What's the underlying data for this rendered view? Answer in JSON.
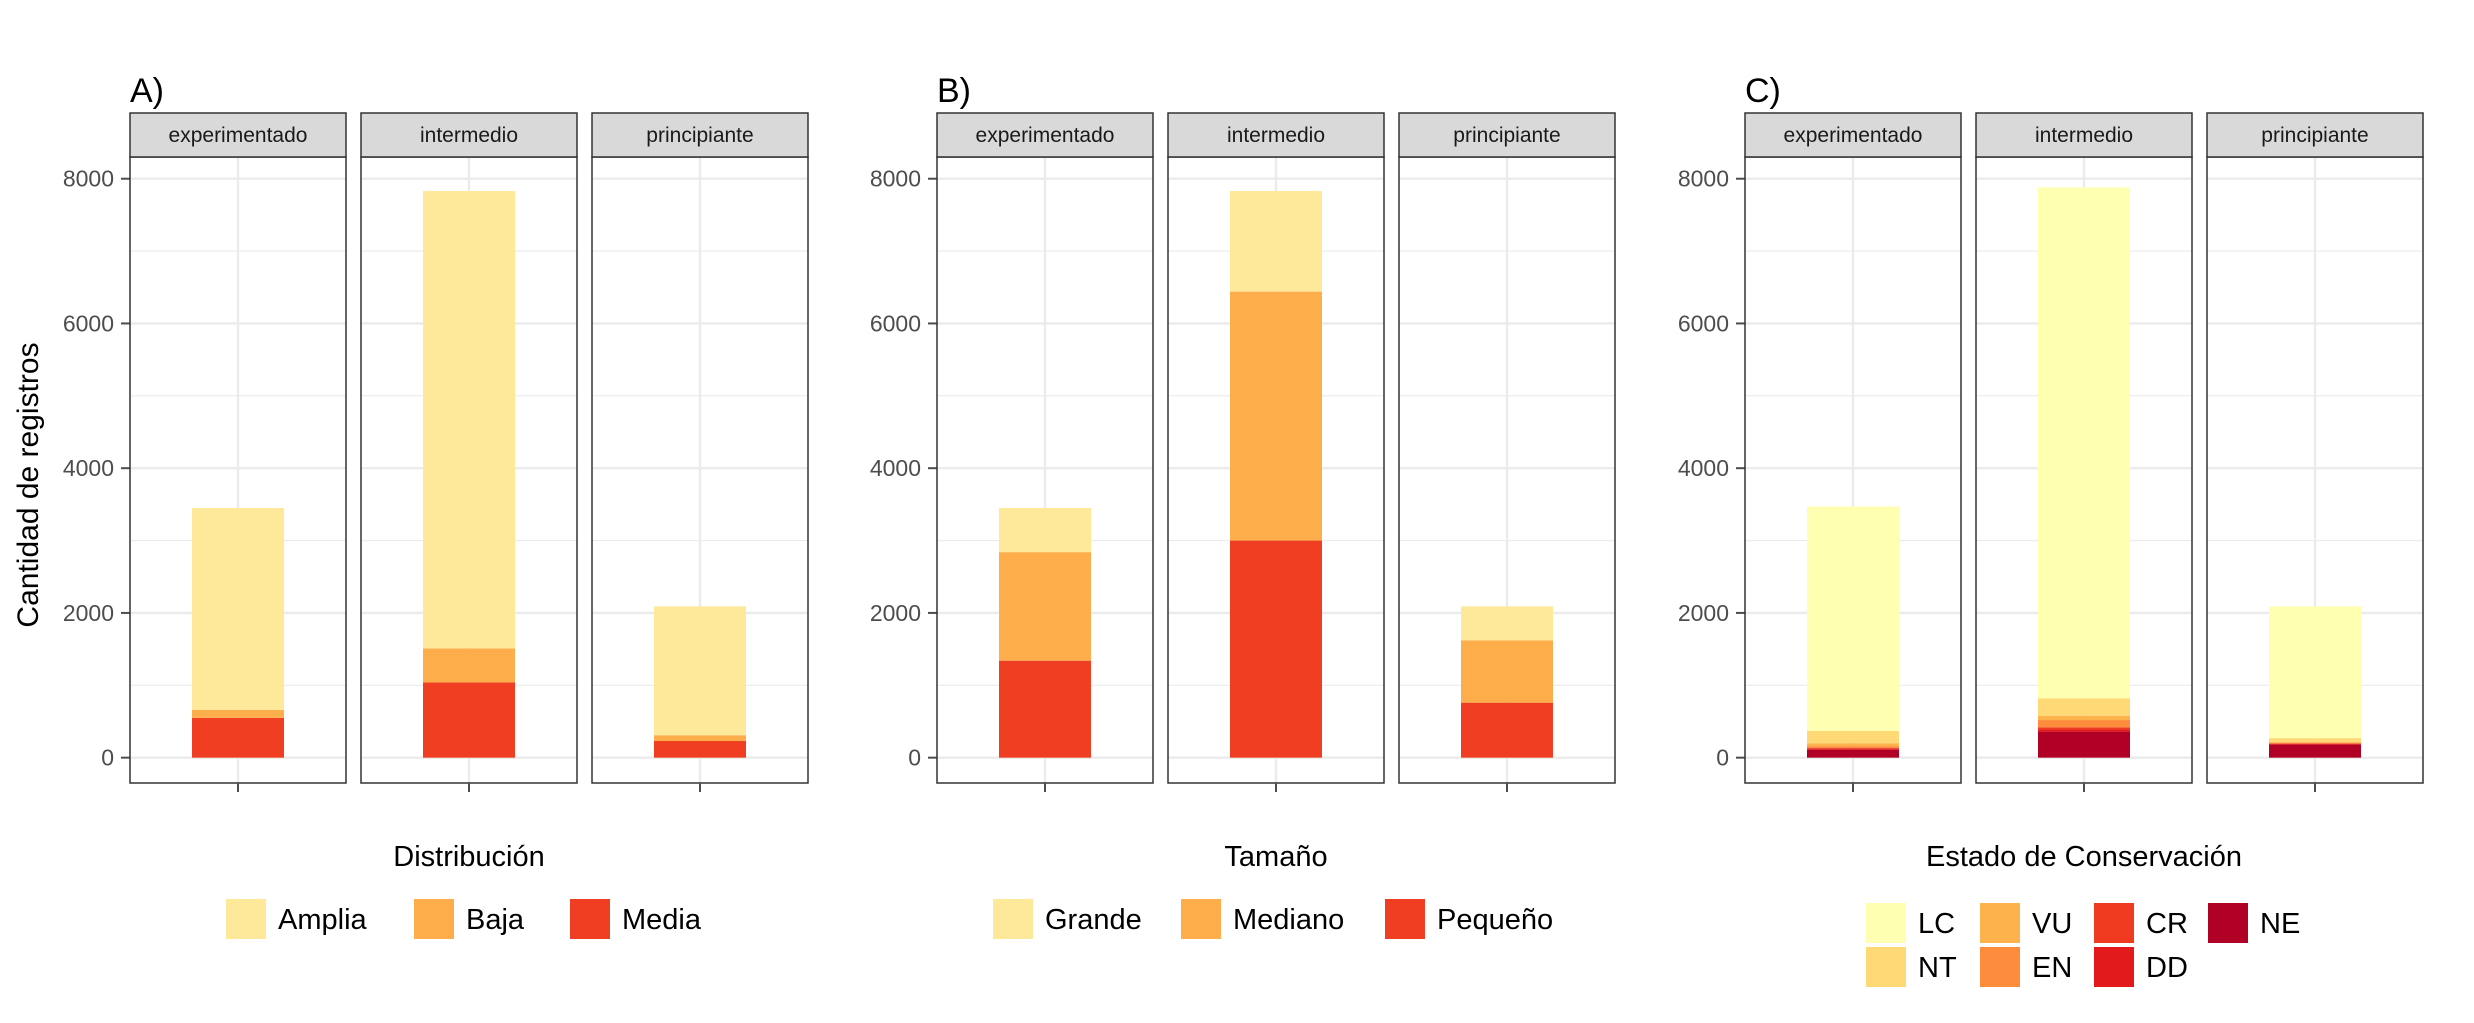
{
  "figure": {
    "ylabel": "Cantidad de registros",
    "colors": {
      "grid": "#ebebeb",
      "strip_fill": "#d9d9d9",
      "strip_border": "#333333",
      "panel_border": "#333333",
      "tick_text": "#4d4d4d"
    }
  },
  "chart_data": [
    {
      "type": "bar",
      "stacked": true,
      "tag": "A)",
      "facets": [
        "experimentado",
        "intermedio",
        "principiante"
      ],
      "ylim": [
        -350,
        8300
      ],
      "yticks": [
        0,
        2000,
        4000,
        6000,
        8000
      ],
      "grid": true,
      "legend": {
        "title": "Distribución",
        "position": "bottom",
        "entries": [
          "Amplia",
          "Baja",
          "Media"
        ],
        "ncol": 3
      },
      "stack_order": [
        "Media",
        "Baja",
        "Amplia"
      ],
      "series": [
        {
          "name": "Amplia",
          "color": "#fee99b",
          "values": [
            2790,
            6320,
            1780
          ]
        },
        {
          "name": "Baja",
          "color": "#fdae4b",
          "values": [
            110,
            470,
            80
          ]
        },
        {
          "name": "Media",
          "color": "#ef3e22",
          "values": [
            550,
            1040,
            230
          ]
        }
      ]
    },
    {
      "type": "bar",
      "stacked": true,
      "tag": "B)",
      "facets": [
        "experimentado",
        "intermedio",
        "principiante"
      ],
      "ylim": [
        -350,
        8300
      ],
      "yticks": [
        0,
        2000,
        4000,
        6000,
        8000
      ],
      "grid": true,
      "legend": {
        "title": "Tamaño",
        "position": "bottom",
        "entries": [
          "Grande",
          "Mediano",
          "Pequeño"
        ],
        "ncol": 3
      },
      "stack_order": [
        "Pequeño",
        "Mediano",
        "Grande"
      ],
      "series": [
        {
          "name": "Grande",
          "color": "#fee99b",
          "values": [
            610,
            1390,
            470
          ]
        },
        {
          "name": "Mediano",
          "color": "#fdae4b",
          "values": [
            1500,
            3440,
            860
          ]
        },
        {
          "name": "Pequeño",
          "color": "#ef3e22",
          "values": [
            1340,
            3000,
            760
          ]
        }
      ]
    },
    {
      "type": "bar",
      "stacked": true,
      "tag": "C)",
      "facets": [
        "experimentado",
        "intermedio",
        "principiante"
      ],
      "ylim": [
        -350,
        8300
      ],
      "yticks": [
        0,
        2000,
        4000,
        6000,
        8000
      ],
      "grid": true,
      "legend": {
        "title": "Estado de Conservación",
        "position": "bottom",
        "entries": [
          "LC",
          "NT",
          "VU",
          "EN",
          "CR",
          "DD",
          "NE"
        ],
        "nrow": 2
      },
      "stack_order": [
        "NE",
        "DD",
        "CR",
        "EN",
        "VU",
        "NT",
        "LC"
      ],
      "series": [
        {
          "name": "LC",
          "color": "#ffffb2",
          "values": [
            3100,
            7060,
            1820
          ]
        },
        {
          "name": "NT",
          "color": "#fed976",
          "values": [
            170,
            240,
            50
          ]
        },
        {
          "name": "VU",
          "color": "#feb24c",
          "values": [
            40,
            60,
            15
          ]
        },
        {
          "name": "EN",
          "color": "#fd8d3c",
          "values": [
            25,
            100,
            10
          ]
        },
        {
          "name": "CR",
          "color": "#f03b20",
          "values": [
            10,
            30,
            5
          ]
        },
        {
          "name": "DD",
          "color": "#e31a1c",
          "values": [
            15,
            30,
            10
          ]
        },
        {
          "name": "NE",
          "color": "#b10026",
          "values": [
            110,
            360,
            180
          ]
        }
      ]
    }
  ]
}
